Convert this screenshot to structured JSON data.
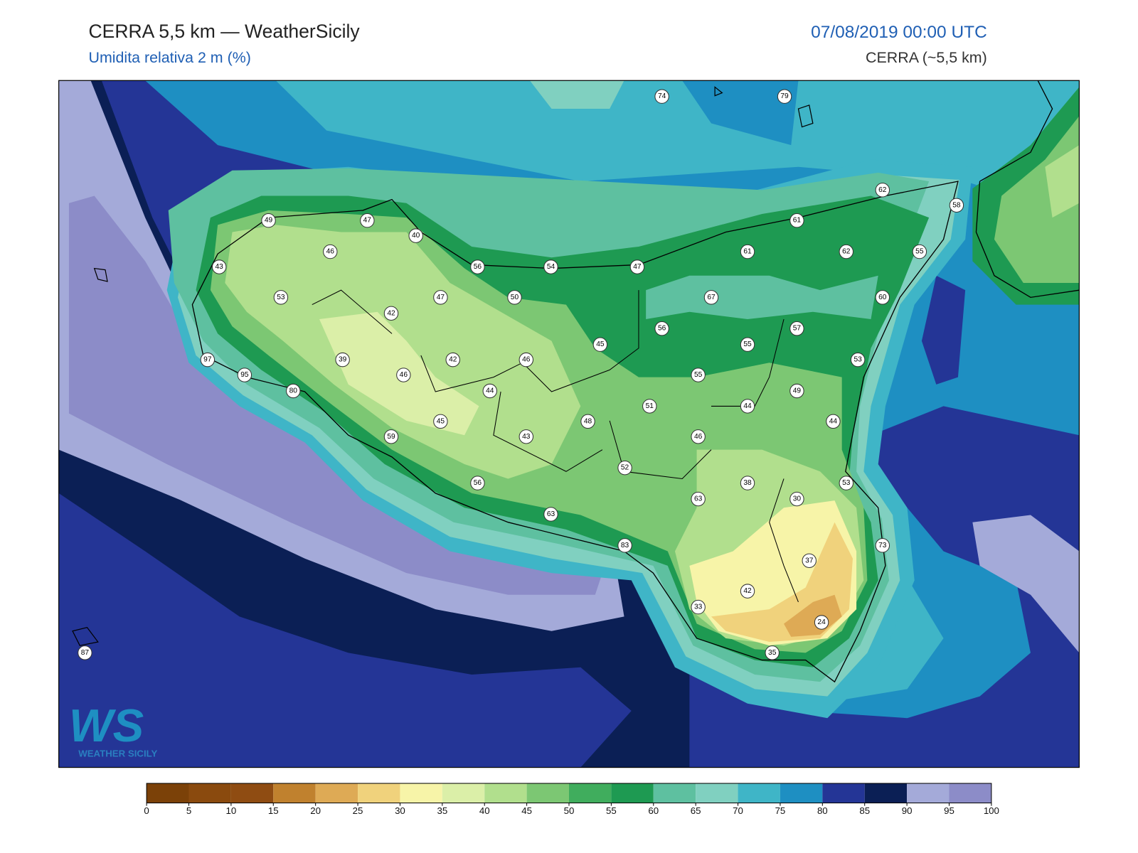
{
  "header": {
    "title": "CERRA 5,5 km — WeatherSicily",
    "subtitle": "Umidita relativa 2 m (%)",
    "datetime": "07/08/2019 00:00 UTC",
    "model": "CERRA (~5,5 km)"
  },
  "logo": {
    "mark": "WS",
    "text": "WEATHER SICILY"
  },
  "stations": [
    74,
    79,
    62,
    58,
    49,
    47,
    61,
    40,
    46,
    61,
    62,
    55,
    43,
    56,
    54,
    47,
    53,
    47,
    50,
    67,
    60,
    42,
    56,
    57,
    55,
    45,
    97,
    39,
    42,
    46,
    53,
    95,
    46,
    55,
    80,
    44,
    49,
    51,
    44,
    45,
    48,
    44,
    59,
    43,
    46,
    52,
    56,
    38,
    53,
    30,
    63,
    63,
    83,
    73,
    37,
    42,
    33,
    24,
    35,
    87
  ],
  "colorbar": {
    "ticks": [
      0,
      5,
      10,
      15,
      20,
      25,
      30,
      35,
      40,
      45,
      50,
      55,
      60,
      65,
      70,
      75,
      80,
      85,
      90,
      95,
      100
    ],
    "colors": [
      "#7b4108",
      "#8a4a0e",
      "#8f4c12",
      "#c0812e",
      "#deaa55",
      "#f0d27c",
      "#f7f4a8",
      "#dbefa8",
      "#b1df8d",
      "#7cc773",
      "#40ad5d",
      "#1e9a52",
      "#5ec0a0",
      "#80d0c0",
      "#3fb5c7",
      "#1e8fc2",
      "#243596",
      "#0b1f55",
      "#a4aad9",
      "#8c8cc8"
    ]
  }
}
